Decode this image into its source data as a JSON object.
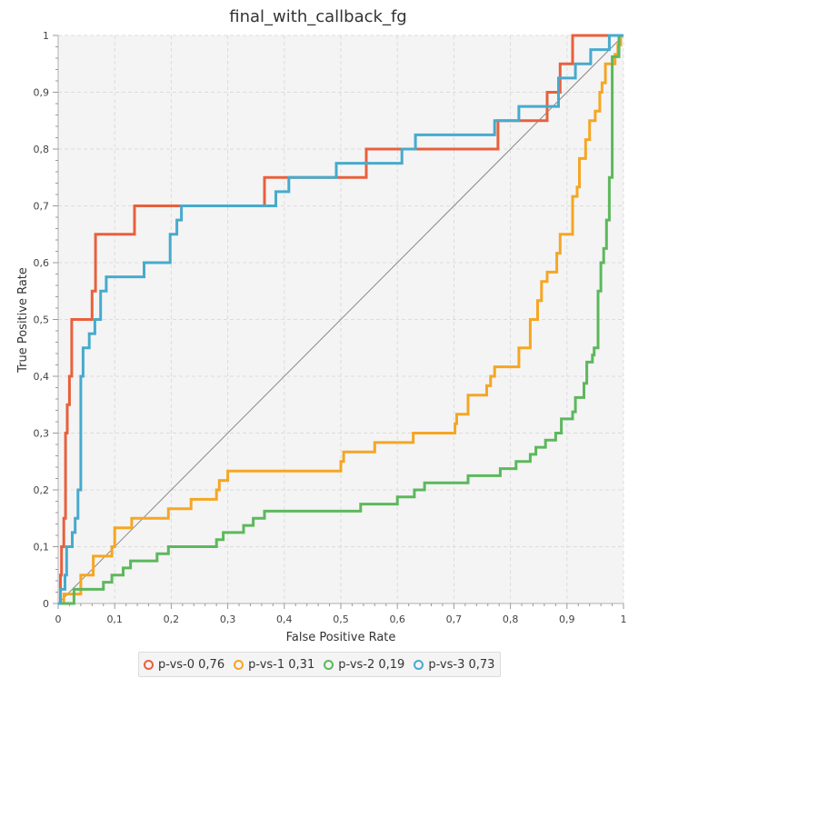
{
  "chart_data": {
    "type": "line",
    "title": "final_with_callback_fg",
    "xlabel": "False Positive Rate",
    "ylabel": "True Positive Rate",
    "xlim": [
      0,
      1
    ],
    "ylim": [
      0,
      1
    ],
    "x_ticks": [
      "0",
      "0,1",
      "0,2",
      "0,3",
      "0,4",
      "0,5",
      "0,6",
      "0,7",
      "0,8",
      "0,9",
      "1"
    ],
    "y_ticks": [
      "0",
      "0,1",
      "0,2",
      "0,3",
      "0,4",
      "0,5",
      "0,6",
      "0,7",
      "0,8",
      "0,9",
      "1"
    ],
    "grid": true,
    "legend_position": "bottom",
    "diagonal_reference": true,
    "series": [
      {
        "name": "p-vs-0 0,76",
        "color": "#e8603c",
        "points": [
          [
            0,
            0
          ],
          [
            0.004,
            0
          ],
          [
            0.004,
            0.05
          ],
          [
            0.006,
            0.05
          ],
          [
            0.006,
            0.1
          ],
          [
            0.01,
            0.1
          ],
          [
            0.01,
            0.15
          ],
          [
            0.013,
            0.15
          ],
          [
            0.013,
            0.3
          ],
          [
            0.016,
            0.3
          ],
          [
            0.016,
            0.35
          ],
          [
            0.02,
            0.35
          ],
          [
            0.02,
            0.4
          ],
          [
            0.024,
            0.4
          ],
          [
            0.024,
            0.5
          ],
          [
            0.06,
            0.5
          ],
          [
            0.06,
            0.55
          ],
          [
            0.066,
            0.55
          ],
          [
            0.066,
            0.65
          ],
          [
            0.135,
            0.65
          ],
          [
            0.135,
            0.7
          ],
          [
            0.365,
            0.7
          ],
          [
            0.365,
            0.75
          ],
          [
            0.545,
            0.75
          ],
          [
            0.545,
            0.8
          ],
          [
            0.778,
            0.8
          ],
          [
            0.778,
            0.85
          ],
          [
            0.865,
            0.85
          ],
          [
            0.865,
            0.9
          ],
          [
            0.888,
            0.9
          ],
          [
            0.888,
            0.95
          ],
          [
            0.91,
            0.95
          ],
          [
            0.91,
            1
          ],
          [
            1,
            1
          ]
        ]
      },
      {
        "name": "p-vs-1 0,31",
        "color": "#f5a623",
        "points": [
          [
            0,
            0
          ],
          [
            0.01,
            0
          ],
          [
            0.01,
            0.0167
          ],
          [
            0.04,
            0.0167
          ],
          [
            0.04,
            0.05
          ],
          [
            0.062,
            0.05
          ],
          [
            0.062,
            0.0833
          ],
          [
            0.095,
            0.0833
          ],
          [
            0.095,
            0.1
          ],
          [
            0.1,
            0.1
          ],
          [
            0.1,
            0.1333
          ],
          [
            0.13,
            0.1333
          ],
          [
            0.13,
            0.15
          ],
          [
            0.195,
            0.15
          ],
          [
            0.195,
            0.1667
          ],
          [
            0.235,
            0.1667
          ],
          [
            0.235,
            0.1833
          ],
          [
            0.28,
            0.1833
          ],
          [
            0.28,
            0.2
          ],
          [
            0.285,
            0.2
          ],
          [
            0.285,
            0.2167
          ],
          [
            0.3,
            0.2167
          ],
          [
            0.3,
            0.2333
          ],
          [
            0.5,
            0.2333
          ],
          [
            0.5,
            0.25
          ],
          [
            0.505,
            0.25
          ],
          [
            0.505,
            0.2667
          ],
          [
            0.56,
            0.2667
          ],
          [
            0.56,
            0.2833
          ],
          [
            0.628,
            0.2833
          ],
          [
            0.628,
            0.3
          ],
          [
            0.702,
            0.3
          ],
          [
            0.702,
            0.3167
          ],
          [
            0.705,
            0.3167
          ],
          [
            0.705,
            0.3333
          ],
          [
            0.725,
            0.3333
          ],
          [
            0.725,
            0.3667
          ],
          [
            0.758,
            0.3667
          ],
          [
            0.758,
            0.3833
          ],
          [
            0.765,
            0.3833
          ],
          [
            0.765,
            0.4
          ],
          [
            0.772,
            0.4
          ],
          [
            0.772,
            0.4167
          ],
          [
            0.815,
            0.4167
          ],
          [
            0.815,
            0.45
          ],
          [
            0.835,
            0.45
          ],
          [
            0.835,
            0.5
          ],
          [
            0.848,
            0.5
          ],
          [
            0.848,
            0.5333
          ],
          [
            0.855,
            0.5333
          ],
          [
            0.855,
            0.5667
          ],
          [
            0.865,
            0.5667
          ],
          [
            0.865,
            0.5833
          ],
          [
            0.882,
            0.5833
          ],
          [
            0.882,
            0.6167
          ],
          [
            0.888,
            0.6167
          ],
          [
            0.888,
            0.65
          ],
          [
            0.91,
            0.65
          ],
          [
            0.91,
            0.7167
          ],
          [
            0.918,
            0.7167
          ],
          [
            0.918,
            0.7333
          ],
          [
            0.922,
            0.7333
          ],
          [
            0.922,
            0.7833
          ],
          [
            0.933,
            0.7833
          ],
          [
            0.933,
            0.8167
          ],
          [
            0.94,
            0.8167
          ],
          [
            0.94,
            0.85
          ],
          [
            0.95,
            0.85
          ],
          [
            0.95,
            0.8667
          ],
          [
            0.958,
            0.8667
          ],
          [
            0.958,
            0.9
          ],
          [
            0.962,
            0.9
          ],
          [
            0.962,
            0.9167
          ],
          [
            0.968,
            0.9167
          ],
          [
            0.968,
            0.95
          ],
          [
            0.985,
            0.95
          ],
          [
            0.985,
            0.9667
          ],
          [
            0.99,
            0.9667
          ],
          [
            0.99,
            0.9833
          ],
          [
            0.995,
            0.9833
          ],
          [
            0.995,
            1
          ],
          [
            1,
            1
          ]
        ]
      },
      {
        "name": "p-vs-2 0,19",
        "color": "#5cb85c",
        "points": [
          [
            0,
            0
          ],
          [
            0.028,
            0
          ],
          [
            0.028,
            0.025
          ],
          [
            0.08,
            0.025
          ],
          [
            0.08,
            0.0375
          ],
          [
            0.095,
            0.0375
          ],
          [
            0.095,
            0.05
          ],
          [
            0.115,
            0.05
          ],
          [
            0.115,
            0.0625
          ],
          [
            0.128,
            0.0625
          ],
          [
            0.128,
            0.075
          ],
          [
            0.175,
            0.075
          ],
          [
            0.175,
            0.0875
          ],
          [
            0.195,
            0.0875
          ],
          [
            0.195,
            0.1
          ],
          [
            0.28,
            0.1
          ],
          [
            0.28,
            0.1125
          ],
          [
            0.292,
            0.1125
          ],
          [
            0.292,
            0.125
          ],
          [
            0.328,
            0.125
          ],
          [
            0.328,
            0.1375
          ],
          [
            0.345,
            0.1375
          ],
          [
            0.345,
            0.15
          ],
          [
            0.365,
            0.15
          ],
          [
            0.365,
            0.1625
          ],
          [
            0.535,
            0.1625
          ],
          [
            0.535,
            0.175
          ],
          [
            0.6,
            0.175
          ],
          [
            0.6,
            0.1875
          ],
          [
            0.63,
            0.1875
          ],
          [
            0.63,
            0.2
          ],
          [
            0.648,
            0.2
          ],
          [
            0.648,
            0.2125
          ],
          [
            0.725,
            0.2125
          ],
          [
            0.725,
            0.225
          ],
          [
            0.782,
            0.225
          ],
          [
            0.782,
            0.2375
          ],
          [
            0.81,
            0.2375
          ],
          [
            0.81,
            0.25
          ],
          [
            0.835,
            0.25
          ],
          [
            0.835,
            0.2625
          ],
          [
            0.845,
            0.2625
          ],
          [
            0.845,
            0.275
          ],
          [
            0.862,
            0.275
          ],
          [
            0.862,
            0.2875
          ],
          [
            0.88,
            0.2875
          ],
          [
            0.88,
            0.3
          ],
          [
            0.89,
            0.3
          ],
          [
            0.89,
            0.325
          ],
          [
            0.91,
            0.325
          ],
          [
            0.91,
            0.3375
          ],
          [
            0.915,
            0.3375
          ],
          [
            0.915,
            0.3625
          ],
          [
            0.93,
            0.3625
          ],
          [
            0.93,
            0.3875
          ],
          [
            0.935,
            0.3875
          ],
          [
            0.935,
            0.425
          ],
          [
            0.945,
            0.425
          ],
          [
            0.945,
            0.4375
          ],
          [
            0.948,
            0.4375
          ],
          [
            0.948,
            0.45
          ],
          [
            0.955,
            0.45
          ],
          [
            0.955,
            0.55
          ],
          [
            0.96,
            0.55
          ],
          [
            0.96,
            0.6
          ],
          [
            0.965,
            0.6
          ],
          [
            0.965,
            0.625
          ],
          [
            0.97,
            0.625
          ],
          [
            0.97,
            0.675
          ],
          [
            0.975,
            0.675
          ],
          [
            0.975,
            0.75
          ],
          [
            0.98,
            0.75
          ],
          [
            0.98,
            0.9625
          ],
          [
            0.992,
            0.9625
          ],
          [
            0.992,
            1
          ],
          [
            1,
            1
          ]
        ]
      },
      {
        "name": "p-vs-3 0,73",
        "color": "#47aacd",
        "points": [
          [
            0,
            0
          ],
          [
            0.004,
            0
          ],
          [
            0.004,
            0.025
          ],
          [
            0.012,
            0.025
          ],
          [
            0.012,
            0.05
          ],
          [
            0.015,
            0.05
          ],
          [
            0.015,
            0.1
          ],
          [
            0.025,
            0.1
          ],
          [
            0.025,
            0.125
          ],
          [
            0.03,
            0.125
          ],
          [
            0.03,
            0.15
          ],
          [
            0.035,
            0.15
          ],
          [
            0.035,
            0.2
          ],
          [
            0.04,
            0.2
          ],
          [
            0.04,
            0.4
          ],
          [
            0.044,
            0.4
          ],
          [
            0.044,
            0.45
          ],
          [
            0.055,
            0.45
          ],
          [
            0.055,
            0.475
          ],
          [
            0.065,
            0.475
          ],
          [
            0.065,
            0.5
          ],
          [
            0.075,
            0.5
          ],
          [
            0.075,
            0.55
          ],
          [
            0.085,
            0.55
          ],
          [
            0.085,
            0.575
          ],
          [
            0.152,
            0.575
          ],
          [
            0.152,
            0.6
          ],
          [
            0.198,
            0.6
          ],
          [
            0.198,
            0.65
          ],
          [
            0.21,
            0.65
          ],
          [
            0.21,
            0.675
          ],
          [
            0.218,
            0.675
          ],
          [
            0.218,
            0.7
          ],
          [
            0.385,
            0.7
          ],
          [
            0.385,
            0.725
          ],
          [
            0.408,
            0.725
          ],
          [
            0.408,
            0.75
          ],
          [
            0.492,
            0.75
          ],
          [
            0.492,
            0.775
          ],
          [
            0.608,
            0.775
          ],
          [
            0.608,
            0.8
          ],
          [
            0.632,
            0.8
          ],
          [
            0.632,
            0.825
          ],
          [
            0.772,
            0.825
          ],
          [
            0.772,
            0.85
          ],
          [
            0.815,
            0.85
          ],
          [
            0.815,
            0.875
          ],
          [
            0.885,
            0.875
          ],
          [
            0.885,
            0.925
          ],
          [
            0.915,
            0.925
          ],
          [
            0.915,
            0.95
          ],
          [
            0.942,
            0.95
          ],
          [
            0.942,
            0.975
          ],
          [
            0.975,
            0.975
          ],
          [
            0.975,
            1
          ],
          [
            1,
            1
          ]
        ]
      }
    ]
  }
}
